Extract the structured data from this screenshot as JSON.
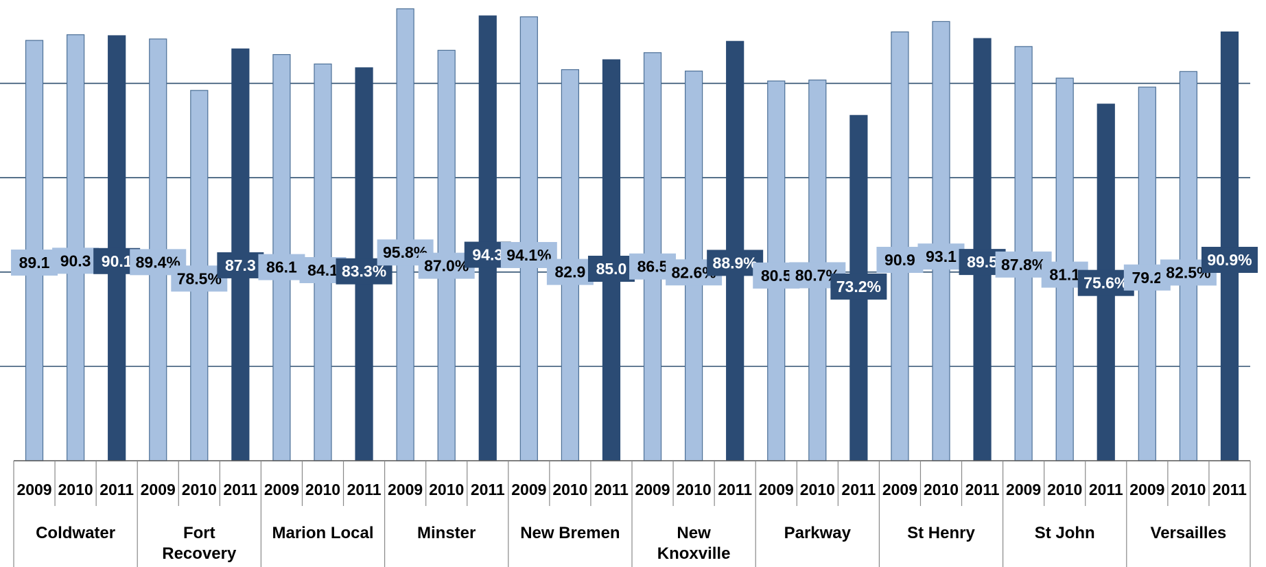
{
  "chart_data": {
    "type": "bar",
    "years": [
      "2009",
      "2010",
      "2011"
    ],
    "categories": [
      "Coldwater",
      "Fort Recovery",
      "Marion Local",
      "Minster",
      "New Bremen",
      "New Knoxville",
      "Parkway",
      "St Henry",
      "St John",
      "Versailles"
    ],
    "category_lines": [
      [
        "Coldwater"
      ],
      [
        "Fort",
        "Recovery"
      ],
      [
        "Marion Local"
      ],
      [
        "Minster"
      ],
      [
        "New Bremen"
      ],
      [
        "New",
        "Knoxville"
      ],
      [
        "Parkway"
      ],
      [
        "St Henry"
      ],
      [
        "St John"
      ],
      [
        "Versailles"
      ]
    ],
    "values": [
      [
        89.1,
        90.3,
        90.1
      ],
      [
        89.4,
        78.5,
        87.3
      ],
      [
        86.1,
        84.1,
        83.3
      ],
      [
        95.8,
        87.0,
        94.3
      ],
      [
        94.1,
        82.9,
        85.0
      ],
      [
        86.5,
        82.6,
        88.9
      ],
      [
        80.5,
        80.7,
        73.2
      ],
      [
        90.9,
        93.1,
        89.5
      ],
      [
        87.8,
        81.1,
        75.6
      ],
      [
        79.2,
        82.5,
        90.9
      ]
    ],
    "labels": [
      [
        "89.1",
        "90.3",
        "90.1"
      ],
      [
        "89.4%",
        "78.5%",
        "87.3"
      ],
      [
        "86.1",
        "84.1",
        "83.3%"
      ],
      [
        "95.8%",
        "87.0%",
        "94.3"
      ],
      [
        "94.1%",
        "82.9",
        "85.0"
      ],
      [
        "86.5",
        "82.6%",
        "88.9%"
      ],
      [
        "80.5",
        "80.7%",
        "73.2%"
      ],
      [
        "90.9",
        "93.1",
        "89.5"
      ],
      [
        "87.8%",
        "81.1",
        "75.6%"
      ],
      [
        "79.2",
        "82.5%",
        "90.9%"
      ]
    ],
    "ylim": [
      0,
      96.5
    ],
    "gridlines": [
      20,
      40,
      60,
      80
    ],
    "colors": {
      "prior_years": "#a7c0e0",
      "current_year": "#2b4b74",
      "gridline": "#2f4f6f"
    },
    "grid": true,
    "title": "",
    "xlabel": "",
    "ylabel": ""
  }
}
